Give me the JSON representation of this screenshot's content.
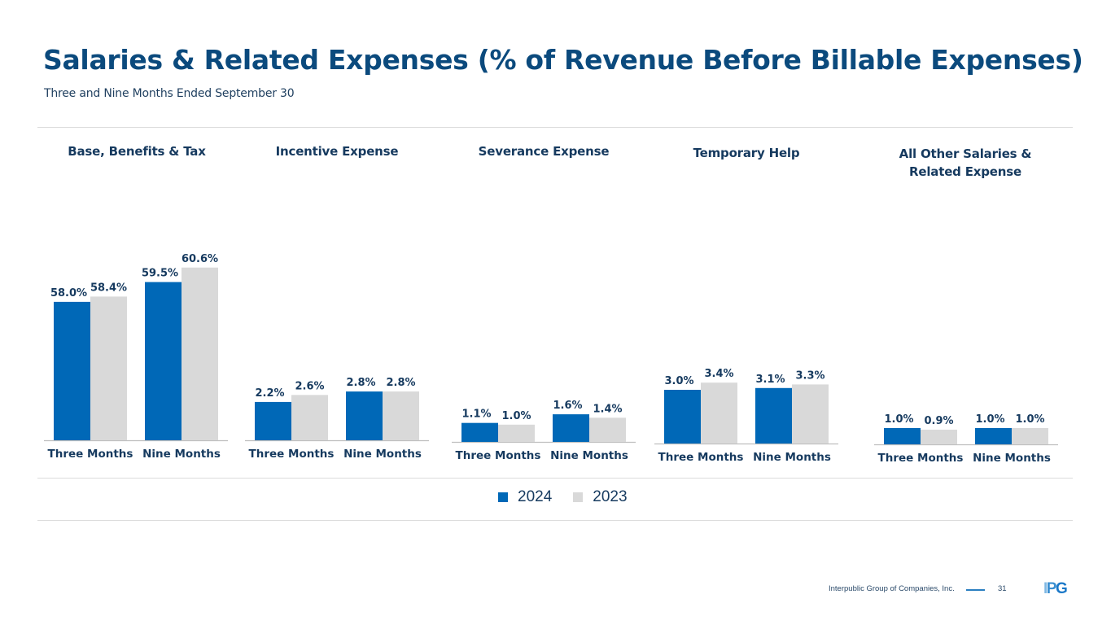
{
  "header": {
    "title": "Salaries & Related Expenses (% of Revenue Before Billable Expenses)",
    "subtitle": "Three and Nine Months Ended September 30"
  },
  "colors": {
    "title": "#0b4a7d",
    "series_2024": "#0068b7",
    "series_2023": "#d9d9d9",
    "label": "#163a5f"
  },
  "legend": {
    "items": [
      {
        "label": "2024",
        "color": "#0068b7"
      },
      {
        "label": "2023",
        "color": "#d9d9d9"
      }
    ]
  },
  "footer": {
    "company": "Interpublic Group of Companies, Inc.",
    "page_number": "31",
    "logo_text": [
      "I",
      "P",
      "G"
    ]
  },
  "chart_data": [
    {
      "type": "bar",
      "title": "Base, Benefits & Tax",
      "categories": [
        "Three Months",
        "Nine Months"
      ],
      "series": [
        {
          "name": "2024",
          "values": [
            58.0,
            59.5
          ],
          "labels": [
            "58.0%",
            "59.5%"
          ]
        },
        {
          "name": "2023",
          "values": [
            58.4,
            60.6
          ],
          "labels": [
            "58.4%",
            "60.6%"
          ]
        }
      ],
      "unit": "%"
    },
    {
      "type": "bar",
      "title": "Incentive Expense",
      "categories": [
        "Three Months",
        "Nine Months"
      ],
      "series": [
        {
          "name": "2024",
          "values": [
            2.2,
            2.8
          ],
          "labels": [
            "2.2%",
            "2.8%"
          ]
        },
        {
          "name": "2023",
          "values": [
            2.6,
            2.8
          ],
          "labels": [
            "2.6%",
            "2.8%"
          ]
        }
      ],
      "unit": "%"
    },
    {
      "type": "bar",
      "title": "Severance Expense",
      "categories": [
        "Three Months",
        "Nine Months"
      ],
      "series": [
        {
          "name": "2024",
          "values": [
            1.1,
            1.6
          ],
          "labels": [
            "1.1%",
            "1.6%"
          ]
        },
        {
          "name": "2023",
          "values": [
            1.0,
            1.4
          ],
          "labels": [
            "1.0%",
            "1.4%"
          ]
        }
      ],
      "unit": "%"
    },
    {
      "type": "bar",
      "title": "Temporary Help",
      "categories": [
        "Three Months",
        "Nine Months"
      ],
      "series": [
        {
          "name": "2024",
          "values": [
            3.0,
            3.1
          ],
          "labels": [
            "3.0%",
            "3.1%"
          ]
        },
        {
          "name": "2023",
          "values": [
            3.4,
            3.3
          ],
          "labels": [
            "3.4%",
            "3.3%"
          ]
        }
      ],
      "unit": "%"
    },
    {
      "type": "bar",
      "title": "All Other Salaries & Related Expense",
      "title_lines": [
        "All Other Salaries &",
        "Related Expense"
      ],
      "categories": [
        "Three Months",
        "Nine Months"
      ],
      "series": [
        {
          "name": "2024",
          "values": [
            1.0,
            1.0
          ],
          "labels": [
            "1.0%",
            "1.0%"
          ]
        },
        {
          "name": "2023",
          "values": [
            0.9,
            1.0
          ],
          "labels": [
            "0.9%",
            "1.0%"
          ]
        }
      ],
      "unit": "%"
    }
  ]
}
